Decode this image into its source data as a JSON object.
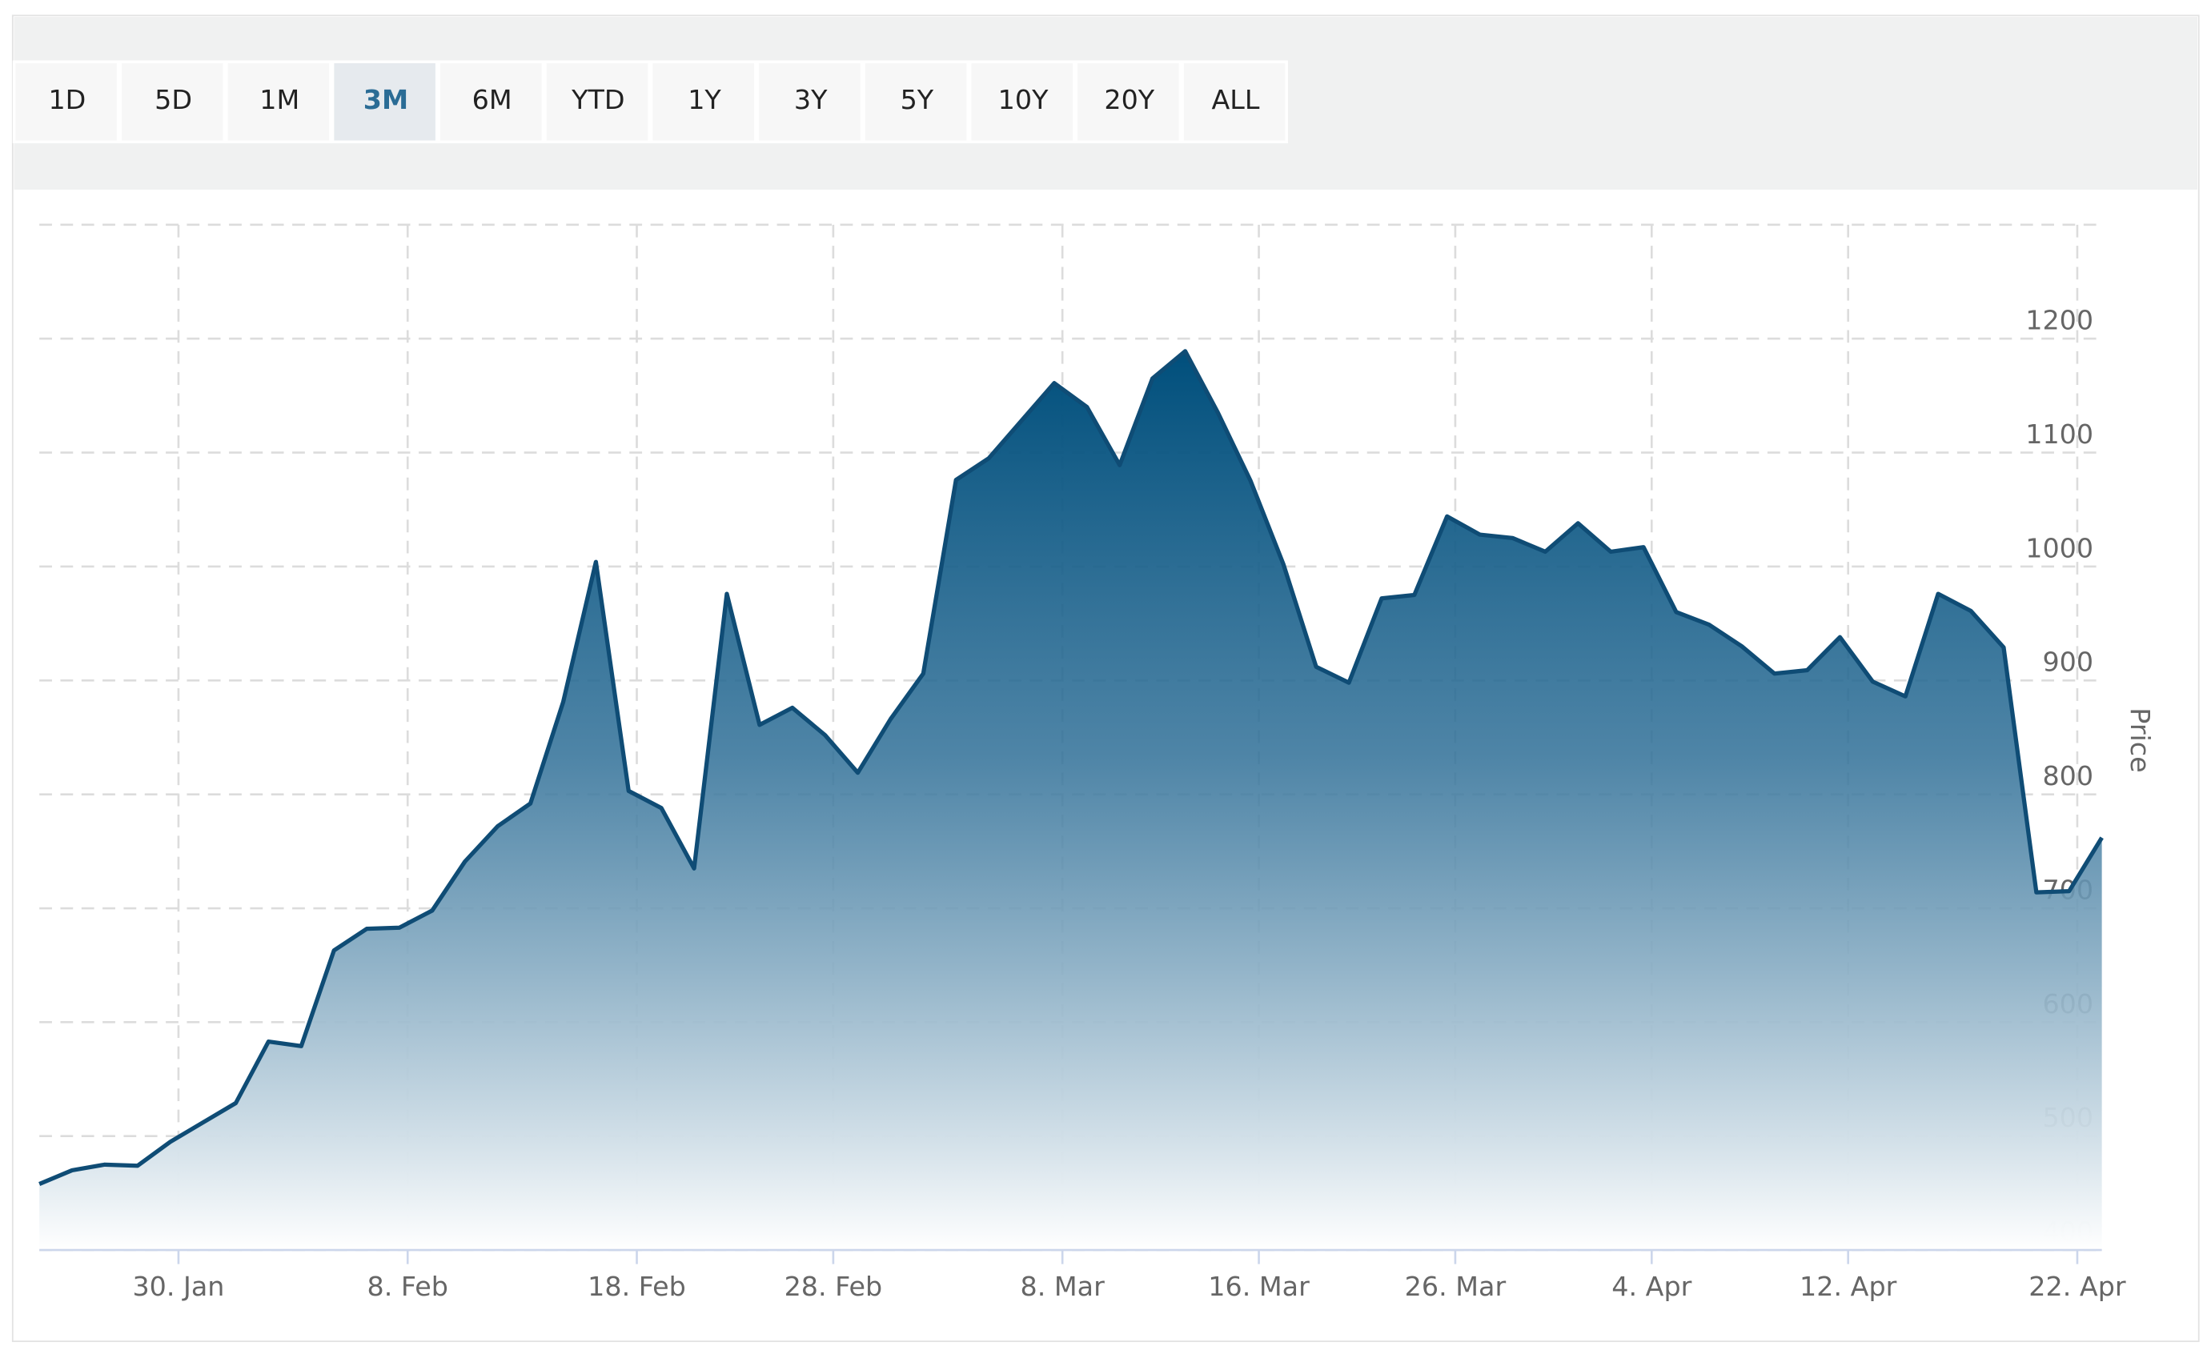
{
  "toolbar": {
    "buttons": [
      "1D",
      "5D",
      "1M",
      "3M",
      "6M",
      "YTD",
      "1Y",
      "3Y",
      "5Y",
      "10Y",
      "20Y",
      "ALL"
    ],
    "selected": 3
  },
  "chart_data": {
    "type": "area",
    "y_label": "Price",
    "categories": [
      null,
      null,
      null,
      null,
      "30. Jan",
      null,
      null,
      null,
      null,
      null,
      null,
      "8. Feb",
      null,
      null,
      null,
      null,
      null,
      null,
      "18. Feb",
      null,
      null,
      null,
      null,
      null,
      "28. Feb",
      null,
      null,
      null,
      null,
      null,
      null,
      "8. Mar",
      null,
      null,
      null,
      null,
      null,
      "16. Mar",
      null,
      null,
      null,
      null,
      null,
      "26. Mar",
      null,
      null,
      null,
      null,
      null,
      "4. Apr",
      null,
      null,
      null,
      null,
      null,
      "12. Apr",
      null,
      null,
      null,
      null,
      null,
      null,
      "22. Apr",
      null
    ],
    "values": [
      458,
      470,
      475,
      474,
      495,
      512,
      529,
      583,
      579,
      663,
      682,
      683,
      698,
      741,
      772,
      792,
      881,
      1004,
      803,
      788,
      735,
      976,
      861,
      876,
      852,
      819,
      866,
      906,
      1076,
      1095,
      1128,
      1161,
      1140,
      1089,
      1165,
      1189,
      1135,
      1075,
      1002,
      912,
      898,
      972,
      975,
      1044,
      1028,
      1025,
      1013,
      1038,
      1013,
      1017,
      960,
      949,
      930,
      906,
      909,
      938,
      899,
      886,
      976,
      961,
      929,
      714,
      715,
      762
    ],
    "color": "#0f4c75",
    "ylim": [
      400,
      1300
    ],
    "yticks": [
      400,
      500,
      600,
      700,
      800,
      900,
      1000,
      1100,
      1200
    ],
    "grid": true
  }
}
